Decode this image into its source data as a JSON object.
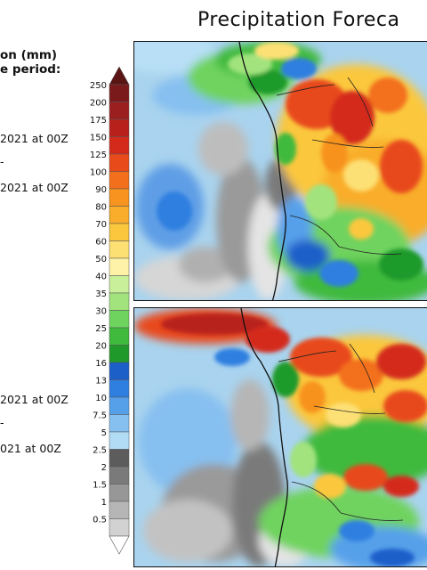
{
  "header": {
    "title": "Precipitation Foreca"
  },
  "legend": {
    "heading_line1": "on (mm)",
    "heading_line2": "e period:",
    "top_panel": {
      "from_text": "2021 at 00Z",
      "dash": "-",
      "to_text": "2021 at 00Z"
    },
    "bottom_panel": {
      "from_text": "2021 at 00Z",
      "dash": "-",
      "to_text": "021 at 00Z"
    }
  },
  "colorbar": {
    "levels": [
      {
        "label": "250",
        "color": "#7a1a1a"
      },
      {
        "label": "200",
        "color": "#9b1f1f"
      },
      {
        "label": "175",
        "color": "#b8201c"
      },
      {
        "label": "150",
        "color": "#d42a1c"
      },
      {
        "label": "125",
        "color": "#e84a1a"
      },
      {
        "label": "100",
        "color": "#f36f1b"
      },
      {
        "label": "90",
        "color": "#f7931e"
      },
      {
        "label": "80",
        "color": "#f9ad2a"
      },
      {
        "label": "70",
        "color": "#fbc73c"
      },
      {
        "label": "60",
        "color": "#fde074"
      },
      {
        "label": "50",
        "color": "#fdf2a8"
      },
      {
        "label": "40",
        "color": "#c9ef9a"
      },
      {
        "label": "35",
        "color": "#a2e37e"
      },
      {
        "label": "30",
        "color": "#6fd35f"
      },
      {
        "label": "25",
        "color": "#3fba3c"
      },
      {
        "label": "20",
        "color": "#1f9a2a"
      },
      {
        "label": "16",
        "color": "#1d5fc9"
      },
      {
        "label": "13",
        "color": "#2f7fe0"
      },
      {
        "label": "10",
        "color": "#56a0ea"
      },
      {
        "label": "7.5",
        "color": "#86c0f0"
      },
      {
        "label": "5",
        "color": "#b2dcf6"
      },
      {
        "label": "2.5",
        "color": "#5c5c5c"
      },
      {
        "label": "2",
        "color": "#7a7a7a"
      },
      {
        "label": "1.5",
        "color": "#979797"
      },
      {
        "label": "1",
        "color": "#b6b6b6"
      },
      {
        "label": "0.5",
        "color": "#d2d2d2"
      }
    ]
  },
  "panels": [
    {
      "name": "top"
    },
    {
      "name": "bottom"
    }
  ]
}
